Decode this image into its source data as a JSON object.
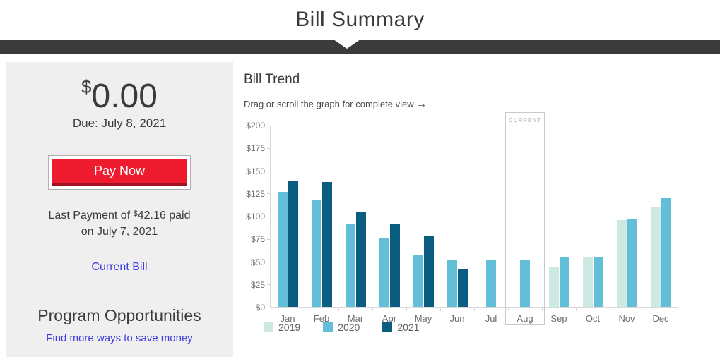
{
  "page": {
    "title": "Bill Summary"
  },
  "summary": {
    "amount_currency": "$",
    "amount_value": "0.00",
    "due": "Due: July 8, 2021",
    "pay_now_label": "Pay Now",
    "last_payment_prefix": "Last Payment of ",
    "last_payment_currency": "$",
    "last_payment_amount": "42.16",
    "last_payment_suffix": " paid",
    "last_payment_line2": "on July 7, 2021",
    "current_bill_link": "Current Bill",
    "program_heading": "Program Opportunities",
    "find_ways_link": "Find more ways to save money"
  },
  "chart": {
    "title": "Bill Trend",
    "hint": "Drag or scroll the graph for complete view",
    "hint_arrow": "→"
  },
  "chart_data": {
    "type": "bar",
    "title": "Bill Trend",
    "categories": [
      "Jan",
      "Feb",
      "Mar",
      "Apr",
      "May",
      "Jun",
      "Jul",
      "Aug",
      "Sep",
      "Oct",
      "Nov",
      "Dec"
    ],
    "series": [
      {
        "name": "2019",
        "color": "#cde9e4",
        "values": [
          null,
          null,
          null,
          null,
          null,
          null,
          null,
          null,
          44,
          55,
          95,
          110
        ]
      },
      {
        "name": "2020",
        "color": "#63bed8",
        "values": [
          126,
          117,
          91,
          75,
          57,
          52,
          52,
          52,
          54,
          55,
          97,
          120
        ]
      },
      {
        "name": "2021",
        "color": "#0b5c81",
        "values": [
          139,
          137,
          104,
          91,
          78,
          42,
          null,
          null,
          null,
          null,
          null,
          null
        ]
      }
    ],
    "ylim": [
      0,
      200
    ],
    "yticks": [
      0,
      25,
      50,
      75,
      100,
      125,
      150,
      175,
      200
    ],
    "ytick_labels": [
      "$0",
      "$25",
      "$50",
      "$75",
      "$100",
      "$125",
      "$150",
      "$175",
      "$200"
    ],
    "grid": false,
    "legend_position": "bottom-left",
    "highlight": {
      "category": "Aug",
      "label": "CURRENT"
    }
  },
  "colors": {
    "accent_red": "#ee1c2e",
    "accent_red_dark": "#a31222",
    "link_blue": "#3d3de0",
    "ribbon_dark": "#3b3b3b",
    "panel_gray": "#efefef",
    "series_2019": "#cde9e4",
    "series_2020": "#63bed8",
    "series_2021": "#0b5c81"
  }
}
